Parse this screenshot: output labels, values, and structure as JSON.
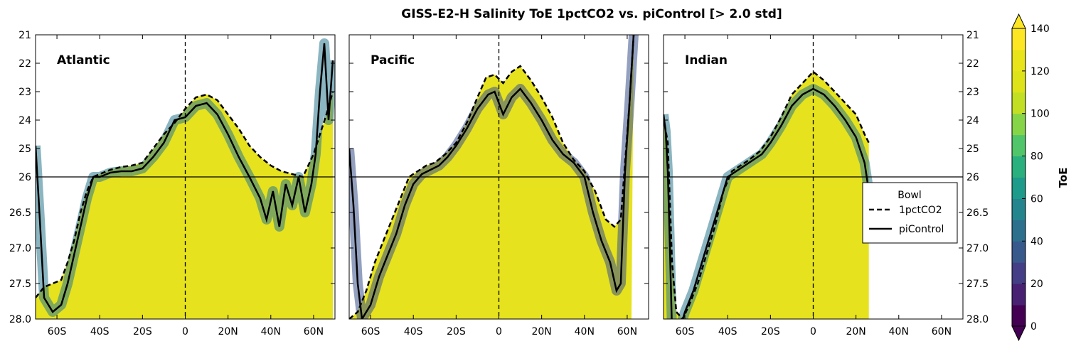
{
  "chart_data": {
    "type": "heatmap",
    "title": "GISS-E2-H Salinity ToE 1pctCO2 vs. piControl [> 2.0 std]",
    "x_tick_labels": [
      "60S",
      "40S",
      "20S",
      "0",
      "20N",
      "40N",
      "60N"
    ],
    "x_ticks_lat": [
      -60,
      -40,
      -20,
      0,
      20,
      40,
      60
    ],
    "xlim_lat": [
      -70,
      70
    ],
    "y_ticks_left": [
      "21",
      "22",
      "23",
      "24",
      "25",
      "26",
      "26.5",
      "27.0",
      "27.5",
      "28.0"
    ],
    "y_ticks_right": [
      "21",
      "22",
      "23",
      "24",
      "25",
      "26",
      "26.5",
      "27.0",
      "27.5",
      "28.0"
    ],
    "y_axis_note": "density axis, upper domain 21-26, lower domain 26-28",
    "split_sigma": 26,
    "panels": [
      {
        "name": "Atlantic",
        "yellow_lat_range": [
          -70,
          70
        ],
        "bowl_1pctCO2": [
          [
            -70,
            27.7
          ],
          [
            -66,
            27.55
          ],
          [
            -62,
            27.5
          ],
          [
            -58,
            27.45
          ],
          [
            -55,
            27.2
          ],
          [
            -52,
            26.9
          ],
          [
            -49,
            26.5
          ],
          [
            -46,
            26.2
          ],
          [
            -43,
            26.0
          ],
          [
            -40,
            25.9
          ],
          [
            -35,
            25.75
          ],
          [
            -30,
            25.65
          ],
          [
            -25,
            25.6
          ],
          [
            -20,
            25.5
          ],
          [
            -15,
            25.0
          ],
          [
            -10,
            24.5
          ],
          [
            -5,
            24.1
          ],
          [
            0,
            23.6
          ],
          [
            5,
            23.2
          ],
          [
            10,
            23.1
          ],
          [
            15,
            23.3
          ],
          [
            20,
            23.8
          ],
          [
            25,
            24.3
          ],
          [
            30,
            24.9
          ],
          [
            35,
            25.3
          ],
          [
            40,
            25.6
          ],
          [
            45,
            25.8
          ],
          [
            50,
            25.9
          ],
          [
            55,
            26.0
          ],
          [
            60,
            25.2
          ],
          [
            63,
            24.5
          ],
          [
            66,
            23.8
          ],
          [
            69,
            23.0
          ]
        ],
        "bowl_piControl": [
          [
            -70,
            24.9
          ],
          [
            -68,
            26.6
          ],
          [
            -66,
            27.7
          ],
          [
            -62,
            27.9
          ],
          [
            -58,
            27.8
          ],
          [
            -55,
            27.5
          ],
          [
            -52,
            27.1
          ],
          [
            -49,
            26.7
          ],
          [
            -46,
            26.3
          ],
          [
            -43,
            26.0
          ],
          [
            -40,
            26.0
          ],
          [
            -35,
            25.85
          ],
          [
            -30,
            25.8
          ],
          [
            -25,
            25.8
          ],
          [
            -20,
            25.7
          ],
          [
            -15,
            25.3
          ],
          [
            -10,
            24.8
          ],
          [
            -5,
            24.0
          ],
          [
            0,
            23.9
          ],
          [
            5,
            23.5
          ],
          [
            10,
            23.4
          ],
          [
            15,
            23.8
          ],
          [
            20,
            24.5
          ],
          [
            25,
            25.3
          ],
          [
            30,
            26.0
          ],
          [
            35,
            26.3
          ],
          [
            38,
            26.6
          ],
          [
            41,
            26.2
          ],
          [
            44,
            26.7
          ],
          [
            47,
            26.1
          ],
          [
            50,
            26.4
          ],
          [
            53,
            26.0
          ],
          [
            56,
            26.5
          ],
          [
            59,
            26.1
          ],
          [
            61,
            25.2
          ],
          [
            63,
            23.0
          ],
          [
            65,
            21.3
          ],
          [
            67,
            24.0
          ],
          [
            69,
            21.9
          ]
        ],
        "dominant_toe_fill": 140,
        "low_toe_region_note": "blue/teal bands along the bowl base"
      },
      {
        "name": "Pacific",
        "yellow_lat_range": [
          -70,
          62
        ],
        "bowl_1pctCO2": [
          [
            -70,
            28.0
          ],
          [
            -66,
            27.9
          ],
          [
            -62,
            27.6
          ],
          [
            -58,
            27.2
          ],
          [
            -54,
            26.9
          ],
          [
            -50,
            26.6
          ],
          [
            -46,
            26.3
          ],
          [
            -42,
            26.0
          ],
          [
            -38,
            25.8
          ],
          [
            -34,
            25.6
          ],
          [
            -30,
            25.5
          ],
          [
            -25,
            25.2
          ],
          [
            -20,
            24.8
          ],
          [
            -15,
            24.1
          ],
          [
            -10,
            23.2
          ],
          [
            -6,
            22.5
          ],
          [
            -2,
            22.4
          ],
          [
            2,
            22.7
          ],
          [
            6,
            22.3
          ],
          [
            10,
            22.1
          ],
          [
            15,
            22.6
          ],
          [
            20,
            23.2
          ],
          [
            25,
            23.9
          ],
          [
            30,
            24.8
          ],
          [
            35,
            25.4
          ],
          [
            40,
            25.8
          ],
          [
            45,
            26.2
          ],
          [
            50,
            26.6
          ],
          [
            54,
            26.7
          ],
          [
            57,
            26.6
          ],
          [
            59,
            25.5
          ],
          [
            61,
            23.5
          ],
          [
            63,
            21.0
          ]
        ],
        "bowl_piControl": [
          [
            -70,
            25.0
          ],
          [
            -68,
            26.4
          ],
          [
            -66,
            27.5
          ],
          [
            -64,
            28.0
          ],
          [
            -60,
            27.8
          ],
          [
            -56,
            27.4
          ],
          [
            -52,
            27.1
          ],
          [
            -48,
            26.8
          ],
          [
            -44,
            26.4
          ],
          [
            -40,
            26.1
          ],
          [
            -36,
            25.9
          ],
          [
            -32,
            25.75
          ],
          [
            -28,
            25.6
          ],
          [
            -24,
            25.3
          ],
          [
            -20,
            24.9
          ],
          [
            -15,
            24.3
          ],
          [
            -10,
            23.6
          ],
          [
            -5,
            23.1
          ],
          [
            -2,
            23.0
          ],
          [
            2,
            23.8
          ],
          [
            6,
            23.2
          ],
          [
            10,
            22.9
          ],
          [
            15,
            23.4
          ],
          [
            20,
            24.0
          ],
          [
            25,
            24.7
          ],
          [
            30,
            25.2
          ],
          [
            35,
            25.5
          ],
          [
            40,
            26.0
          ],
          [
            44,
            26.5
          ],
          [
            48,
            26.9
          ],
          [
            52,
            27.2
          ],
          [
            55,
            27.6
          ],
          [
            57,
            27.5
          ],
          [
            59,
            25.8
          ],
          [
            61,
            23.5
          ],
          [
            63,
            21.0
          ]
        ],
        "dominant_toe_fill": 140,
        "low_toe_region_note": "purple patches near 25-26 at 25S and 15N-30N"
      },
      {
        "name": "Indian",
        "yellow_lat_range": [
          -70,
          26
        ],
        "bowl_1pctCO2": [
          [
            -70,
            23.9
          ],
          [
            -68,
            24.8
          ],
          [
            -66,
            27.2
          ],
          [
            -64,
            27.9
          ],
          [
            -61,
            28.0
          ],
          [
            -58,
            27.8
          ],
          [
            -54,
            27.5
          ],
          [
            -50,
            27.1
          ],
          [
            -46,
            26.7
          ],
          [
            -42,
            26.2
          ],
          [
            -38,
            25.8
          ],
          [
            -34,
            25.6
          ],
          [
            -30,
            25.4
          ],
          [
            -25,
            25.1
          ],
          [
            -20,
            24.6
          ],
          [
            -15,
            23.9
          ],
          [
            -10,
            23.1
          ],
          [
            -5,
            22.7
          ],
          [
            0,
            22.3
          ],
          [
            5,
            22.6
          ],
          [
            10,
            23.0
          ],
          [
            15,
            23.4
          ],
          [
            20,
            23.8
          ],
          [
            24,
            24.5
          ],
          [
            26,
            24.8
          ]
        ],
        "bowl_piControl": [
          [
            -70,
            23.8
          ],
          [
            -69,
            24.4
          ],
          [
            -68,
            25.8
          ],
          [
            -67,
            27.0
          ],
          [
            -66,
            28.2
          ],
          [
            -63,
            28.2
          ],
          [
            -60,
            27.9
          ],
          [
            -56,
            27.6
          ],
          [
            -52,
            27.2
          ],
          [
            -48,
            26.8
          ],
          [
            -44,
            26.4
          ],
          [
            -40,
            26.0
          ],
          [
            -36,
            25.8
          ],
          [
            -32,
            25.6
          ],
          [
            -28,
            25.4
          ],
          [
            -24,
            25.2
          ],
          [
            -20,
            24.8
          ],
          [
            -15,
            24.2
          ],
          [
            -10,
            23.5
          ],
          [
            -5,
            23.1
          ],
          [
            0,
            22.9
          ],
          [
            5,
            23.1
          ],
          [
            10,
            23.5
          ],
          [
            15,
            24.0
          ],
          [
            20,
            24.6
          ],
          [
            24,
            25.5
          ],
          [
            26,
            26.2
          ]
        ],
        "dominant_toe_fill": 140,
        "low_toe_region_note": "teal patches near the bowl between 20S and 20N"
      }
    ],
    "legend": {
      "title": "Bowl",
      "entries": [
        {
          "label": "1pctCO2",
          "style": "dashed"
        },
        {
          "label": "piControl",
          "style": "solid"
        }
      ],
      "placement": "right of Indian panel"
    },
    "colorbar": {
      "label": "ToE",
      "tick_labels": [
        "0",
        "20",
        "40",
        "60",
        "80",
        "100",
        "120",
        "140"
      ],
      "ticks": [
        0,
        20,
        40,
        60,
        80,
        100,
        120,
        140
      ],
      "range": [
        0,
        140
      ],
      "extend": "both",
      "levels": 14,
      "colors": [
        "#440154",
        "#482173",
        "#433e85",
        "#38598c",
        "#2d708e",
        "#25858e",
        "#1e9b8a",
        "#2ab07f",
        "#51c56a",
        "#86d549",
        "#c2df23",
        "#dde318",
        "#e8e419",
        "#fde725"
      ]
    },
    "colors": {
      "fill_high": "#e6e21d",
      "bowl_line": "#000000"
    }
  }
}
